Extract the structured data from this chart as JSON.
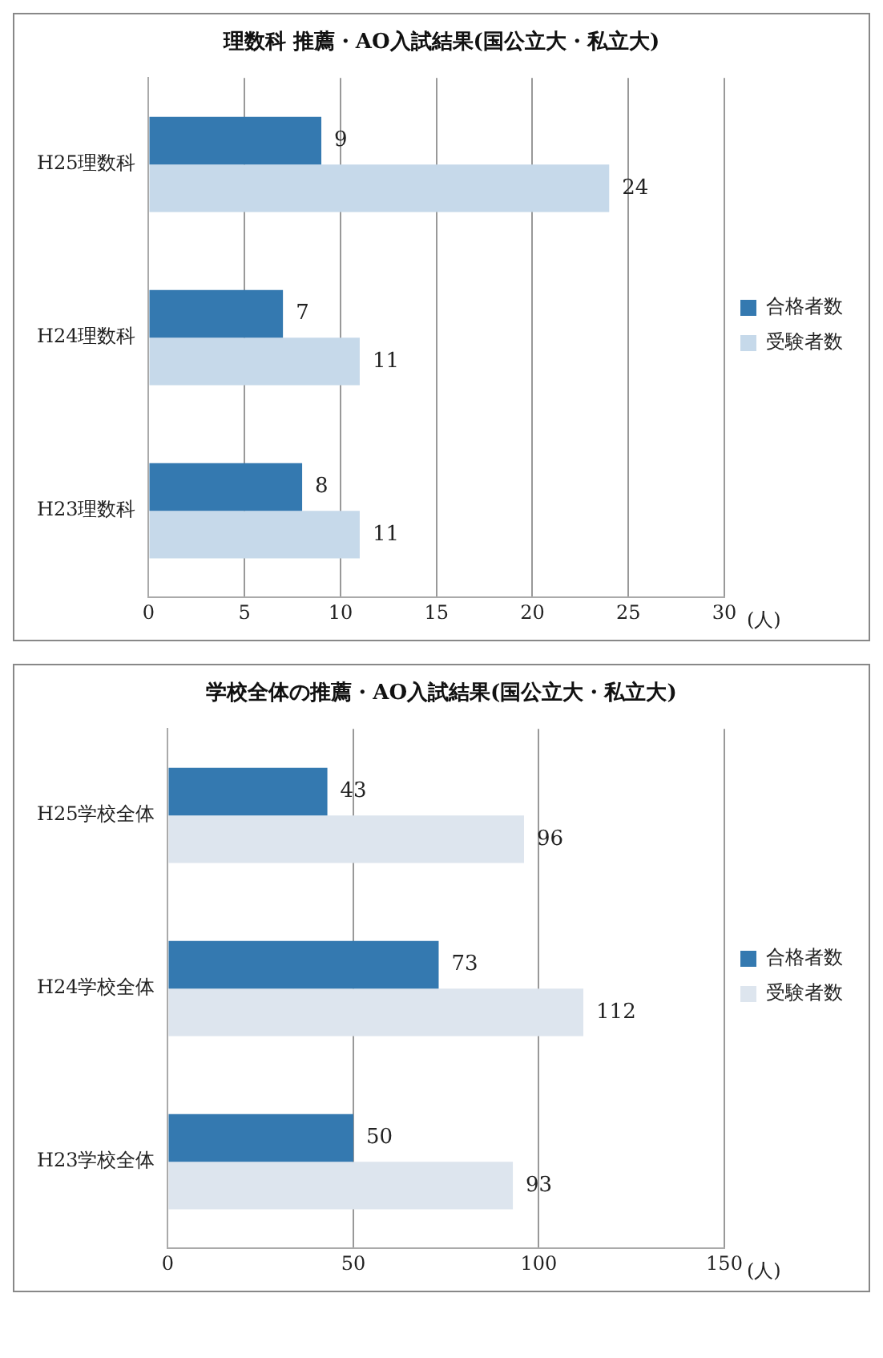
{
  "chart_data": [
    {
      "type": "bar",
      "orientation": "horizontal",
      "title": "理数科 推薦・AO入試結果(国公立大・私立大)",
      "xlabel": "(人)",
      "categories": [
        "H25理数科",
        "H24理数科",
        "H23理数科"
      ],
      "series": [
        {
          "name": "合格者数",
          "color": "#3479b0",
          "values": [
            9,
            7,
            8
          ]
        },
        {
          "name": "受験者数",
          "color": "#c6d9ea",
          "values": [
            24,
            11,
            11
          ]
        }
      ],
      "xlim": [
        0,
        30
      ],
      "xticks": [
        0,
        5,
        10,
        15,
        20,
        25,
        30
      ],
      "grid": "x",
      "legend": "right",
      "data_labels": true
    },
    {
      "type": "bar",
      "orientation": "horizontal",
      "title": "学校全体の推薦・AO入試結果(国公立大・私立大)",
      "xlabel": "(人)",
      "categories": [
        "H25学校全体",
        "H24学校全体",
        "H23学校全体"
      ],
      "series": [
        {
          "name": "合格者数",
          "color": "#3479b0",
          "values": [
            43,
            73,
            50
          ]
        },
        {
          "name": "受験者数",
          "color": "#dde5ee",
          "values": [
            96,
            112,
            93
          ]
        }
      ],
      "xlim": [
        0,
        150
      ],
      "xticks": [
        0,
        50,
        100,
        150
      ],
      "grid": "x",
      "legend": "right",
      "data_labels": true
    }
  ]
}
